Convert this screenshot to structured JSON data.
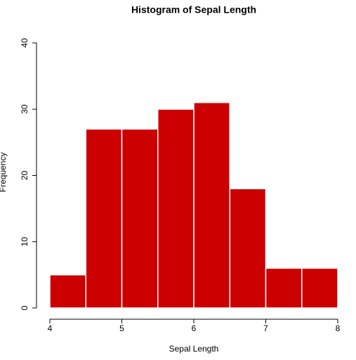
{
  "chart_data": {
    "type": "histogram",
    "title": "Histogram of Sepal Length",
    "x_label": "Sepal Length",
    "y_label": "Frequency",
    "bins": [
      4,
      4.5,
      5,
      5.5,
      6,
      6.5,
      7,
      7.5,
      8
    ],
    "values": [
      5,
      27,
      27,
      30,
      31,
      18,
      6,
      6
    ],
    "color": "#cc0000",
    "xlim": [
      4,
      8
    ],
    "xticks": [
      4,
      5,
      6,
      7,
      8
    ],
    "ylim": [
      0,
      40
    ],
    "yticks": [
      0,
      10,
      20,
      30,
      40
    ]
  }
}
